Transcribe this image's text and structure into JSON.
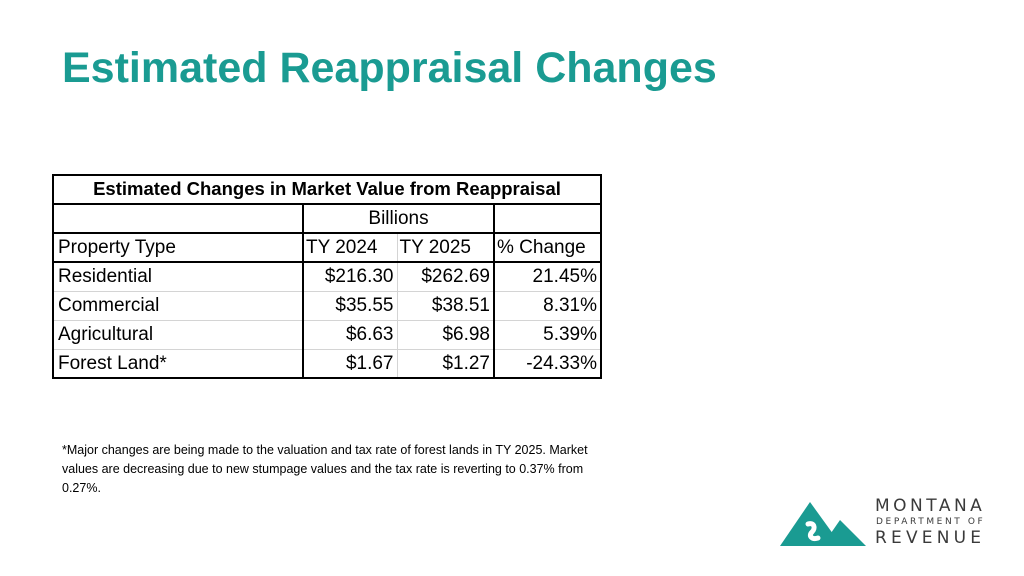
{
  "slide": {
    "title": "Estimated Reappraisal Changes"
  },
  "table": {
    "caption": "Estimated Changes in Market Value from Reappraisal",
    "unit_label": "Billions",
    "headers": [
      "Property Type",
      "TY 2024",
      "TY 2025",
      "% Change"
    ],
    "rows": [
      {
        "type": "Residential",
        "ty2024": "$216.30",
        "ty2025": "$262.69",
        "change": "21.45%"
      },
      {
        "type": "Commercial",
        "ty2024": "$35.55",
        "ty2025": "$38.51",
        "change": "8.31%"
      },
      {
        "type": "Agricultural",
        "ty2024": "$6.63",
        "ty2025": "$6.98",
        "change": "5.39%"
      },
      {
        "type": "Forest Land*",
        "ty2024": "$1.67",
        "ty2025": "$1.27",
        "change": "-24.33%"
      }
    ]
  },
  "footnote": "*Major changes are being made to the valuation and tax rate of forest lands in TY 2025. Market values are decreasing due to new stumpage values and the tax rate is reverting to 0.37% from 0.27%.",
  "logo": {
    "line1": "MONTANA",
    "line2": "DEPARTMENT OF",
    "line3": "REVENUE",
    "color": "#1a9b92"
  }
}
